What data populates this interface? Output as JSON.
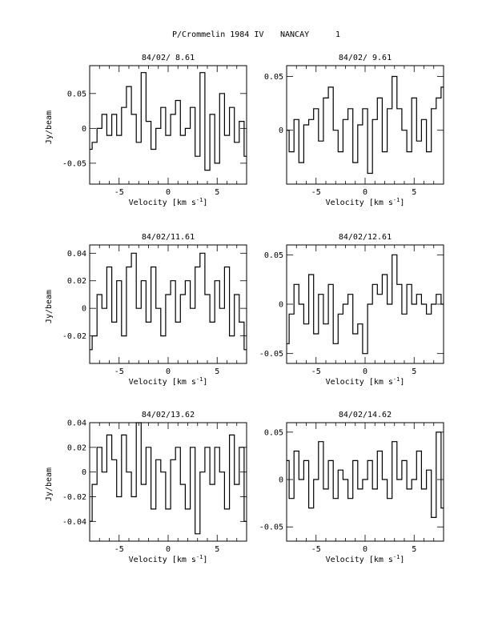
{
  "header": {
    "title": "P/Crommelin 1984 IV",
    "station": "NANCAY",
    "page_number": "1"
  },
  "chart_data": [
    {
      "type": "line",
      "title": "84/02/ 8.61",
      "xlabel": "Velocity [km s^-1]",
      "ylabel": "Jy/beam",
      "xlim": [
        -8,
        8
      ],
      "ylim": [
        -0.08,
        0.09
      ],
      "xticks": [
        -5,
        0,
        5
      ],
      "yticks": [
        -0.05,
        0,
        0.05
      ],
      "ytick_labels": [
        "-0.05",
        "0",
        "0.05"
      ],
      "x": [
        -8.0,
        -7.5,
        -7.0,
        -6.5,
        -6.0,
        -5.5,
        -5.0,
        -4.5,
        -4.0,
        -3.5,
        -3.0,
        -2.5,
        -2.0,
        -1.5,
        -1.0,
        -0.5,
        0.0,
        0.5,
        1.0,
        1.5,
        2.0,
        2.5,
        3.0,
        3.5,
        4.0,
        4.5,
        5.0,
        5.5,
        6.0,
        6.5,
        7.0,
        7.5,
        8.0
      ],
      "y": [
        -0.03,
        -0.02,
        0.0,
        0.02,
        -0.01,
        0.02,
        -0.01,
        0.03,
        0.06,
        0.02,
        -0.02,
        0.08,
        0.01,
        -0.03,
        0.0,
        0.03,
        -0.01,
        0.02,
        0.04,
        -0.01,
        0.0,
        0.03,
        -0.04,
        0.08,
        -0.06,
        0.02,
        -0.05,
        0.05,
        -0.01,
        0.03,
        -0.02,
        0.01,
        -0.04
      ]
    },
    {
      "type": "line",
      "title": "84/02/ 9.61",
      "xlabel": "Velocity [km s^-1]",
      "ylabel": "",
      "xlim": [
        -8,
        8
      ],
      "ylim": [
        -0.05,
        0.06
      ],
      "xticks": [
        -5,
        0,
        5
      ],
      "yticks": [
        0,
        0.05
      ],
      "ytick_labels": [
        "0",
        "0.05"
      ],
      "x": [
        -8.0,
        -7.5,
        -7.0,
        -6.5,
        -6.0,
        -5.5,
        -5.0,
        -4.5,
        -4.0,
        -3.5,
        -3.0,
        -2.5,
        -2.0,
        -1.5,
        -1.0,
        -0.5,
        0.0,
        0.5,
        1.0,
        1.5,
        2.0,
        2.5,
        3.0,
        3.5,
        4.0,
        4.5,
        5.0,
        5.5,
        6.0,
        6.5,
        7.0,
        7.5,
        8.0
      ],
      "y": [
        0.0,
        -0.02,
        0.01,
        -0.03,
        0.005,
        0.01,
        0.02,
        -0.01,
        0.03,
        0.04,
        0.0,
        -0.02,
        0.01,
        0.02,
        -0.03,
        0.005,
        0.02,
        -0.04,
        0.01,
        0.03,
        -0.02,
        0.02,
        0.05,
        0.02,
        0.0,
        -0.02,
        0.03,
        -0.01,
        0.01,
        -0.02,
        0.02,
        0.03,
        0.04
      ]
    },
    {
      "type": "line",
      "title": "84/02/11.61",
      "xlabel": "Velocity [km s^-1]",
      "ylabel": "Jy/beam",
      "xlim": [
        -8,
        8
      ],
      "ylim": [
        -0.04,
        0.046
      ],
      "xticks": [
        -5,
        0,
        5
      ],
      "yticks": [
        -0.02,
        0,
        0.02,
        0.04
      ],
      "ytick_labels": [
        "-0.02",
        "0",
        "0.02",
        "0.04"
      ],
      "x": [
        -8.0,
        -7.5,
        -7.0,
        -6.5,
        -6.0,
        -5.5,
        -5.0,
        -4.5,
        -4.0,
        -3.5,
        -3.0,
        -2.5,
        -2.0,
        -1.5,
        -1.0,
        -0.5,
        0.0,
        0.5,
        1.0,
        1.5,
        2.0,
        2.5,
        3.0,
        3.5,
        4.0,
        4.5,
        5.0,
        5.5,
        6.0,
        6.5,
        7.0,
        7.5,
        8.0
      ],
      "y": [
        -0.03,
        -0.02,
        0.01,
        0.0,
        0.03,
        -0.01,
        0.02,
        -0.02,
        0.03,
        0.04,
        0.0,
        0.02,
        -0.01,
        0.03,
        0.0,
        -0.02,
        0.01,
        0.02,
        -0.01,
        0.01,
        0.02,
        0.0,
        0.03,
        0.04,
        0.01,
        -0.01,
        0.02,
        0.0,
        0.03,
        -0.02,
        0.01,
        -0.01,
        -0.03
      ]
    },
    {
      "type": "line",
      "title": "84/02/12.61",
      "xlabel": "Velocity [km s^-1]",
      "ylabel": "",
      "xlim": [
        -8,
        8
      ],
      "ylim": [
        -0.06,
        0.06
      ],
      "xticks": [
        -5,
        0,
        5
      ],
      "yticks": [
        -0.05,
        0,
        0.05
      ],
      "ytick_labels": [
        "-0.05",
        "0",
        "0.05"
      ],
      "x": [
        -8.0,
        -7.5,
        -7.0,
        -6.5,
        -6.0,
        -5.5,
        -5.0,
        -4.5,
        -4.0,
        -3.5,
        -3.0,
        -2.5,
        -2.0,
        -1.5,
        -1.0,
        -0.5,
        0.0,
        0.5,
        1.0,
        1.5,
        2.0,
        2.5,
        3.0,
        3.5,
        4.0,
        4.5,
        5.0,
        5.5,
        6.0,
        6.5,
        7.0,
        7.5,
        8.0
      ],
      "y": [
        -0.04,
        -0.01,
        0.02,
        0.0,
        -0.02,
        0.03,
        -0.03,
        0.01,
        -0.02,
        0.02,
        -0.04,
        -0.01,
        0.0,
        0.01,
        -0.03,
        -0.02,
        -0.05,
        0.0,
        0.02,
        0.01,
        0.03,
        0.0,
        0.05,
        0.02,
        -0.01,
        0.02,
        0.0,
        0.01,
        0.0,
        -0.01,
        0.0,
        0.01,
        0.0
      ]
    },
    {
      "type": "line",
      "title": "84/02/13.62",
      "xlabel": "Velocity [km s^-1]",
      "ylabel": "Jy/beam",
      "xlim": [
        -8,
        8
      ],
      "ylim": [
        -0.056,
        0.04
      ],
      "xticks": [
        -5,
        0,
        5
      ],
      "yticks": [
        -0.04,
        -0.02,
        0,
        0.02,
        0.04
      ],
      "ytick_labels": [
        "-0.04",
        "-0.02",
        "0",
        "0.02",
        "0.04"
      ],
      "x": [
        -8.0,
        -7.5,
        -7.0,
        -6.5,
        -6.0,
        -5.5,
        -5.0,
        -4.5,
        -4.0,
        -3.5,
        -3.0,
        -2.5,
        -2.0,
        -1.5,
        -1.0,
        -0.5,
        0.0,
        0.5,
        1.0,
        1.5,
        2.0,
        2.5,
        3.0,
        3.5,
        4.0,
        4.5,
        5.0,
        5.5,
        6.0,
        6.5,
        7.0,
        7.5,
        8.0
      ],
      "y": [
        -0.04,
        -0.01,
        0.02,
        0.0,
        0.03,
        0.01,
        -0.02,
        0.03,
        0.0,
        -0.02,
        0.04,
        -0.01,
        0.02,
        -0.03,
        0.01,
        0.0,
        -0.03,
        0.01,
        0.02,
        -0.01,
        -0.03,
        0.02,
        -0.05,
        0.0,
        0.02,
        -0.01,
        0.02,
        0.0,
        -0.03,
        0.03,
        -0.01,
        0.02,
        -0.04
      ]
    },
    {
      "type": "line",
      "title": "84/02/14.62",
      "xlabel": "Velocity [km s^-1]",
      "ylabel": "",
      "xlim": [
        -8,
        8
      ],
      "ylim": [
        -0.065,
        0.06
      ],
      "xticks": [
        -5,
        0,
        5
      ],
      "yticks": [
        -0.05,
        0,
        0.05
      ],
      "ytick_labels": [
        "-0.05",
        "0",
        "0.05"
      ],
      "x": [
        -8.0,
        -7.5,
        -7.0,
        -6.5,
        -6.0,
        -5.5,
        -5.0,
        -4.5,
        -4.0,
        -3.5,
        -3.0,
        -2.5,
        -2.0,
        -1.5,
        -1.0,
        -0.5,
        0.0,
        0.5,
        1.0,
        1.5,
        2.0,
        2.5,
        3.0,
        3.5,
        4.0,
        4.5,
        5.0,
        5.5,
        6.0,
        6.5,
        7.0,
        7.5,
        8.0
      ],
      "y": [
        0.02,
        -0.02,
        0.03,
        0.0,
        0.02,
        -0.03,
        0.0,
        0.04,
        -0.01,
        0.02,
        -0.02,
        0.01,
        0.0,
        -0.02,
        0.02,
        -0.01,
        0.0,
        0.02,
        -0.01,
        0.03,
        0.0,
        -0.02,
        0.04,
        0.0,
        0.02,
        -0.01,
        0.0,
        0.03,
        -0.01,
        0.01,
        -0.04,
        0.05,
        -0.03
      ]
    }
  ]
}
